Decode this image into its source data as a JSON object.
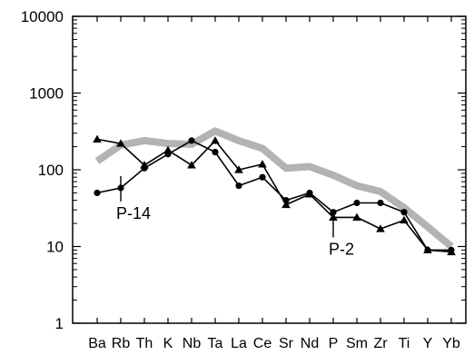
{
  "chart_data": {
    "type": "line",
    "title": "",
    "xlabel": "",
    "ylabel": "",
    "y_scale": "log",
    "ylim": [
      1,
      10000
    ],
    "y_ticks": [
      {
        "value": 1,
        "label": "1"
      },
      {
        "value": 10,
        "label": "10"
      },
      {
        "value": 100,
        "label": "100"
      },
      {
        "value": 1000,
        "label": "1000"
      },
      {
        "value": 10000,
        "label": "10000"
      }
    ],
    "categories": [
      "Ba",
      "Rb",
      "Th",
      "K",
      "Nb",
      "Ta",
      "La",
      "Ce",
      "Sr",
      "Nd",
      "P",
      "Sm",
      "Zr",
      "Ti",
      "Y",
      "Yb"
    ],
    "grid": false,
    "legend": "none",
    "series": [
      {
        "marker": "none",
        "color": "#b3b3b3",
        "values": [
          130,
          210,
          240,
          220,
          215,
          320,
          240,
          190,
          105,
          110,
          85,
          62,
          52,
          32,
          18,
          10
        ]
      },
      {
        "marker": "circle",
        "color": "#000000",
        "values": [
          50,
          58,
          105,
          160,
          240,
          170,
          62,
          80,
          40,
          50,
          28,
          37,
          37,
          28,
          9,
          9
        ]
      },
      {
        "marker": "triangle",
        "color": "#000000",
        "values": [
          250,
          220,
          115,
          180,
          115,
          240,
          100,
          118,
          35,
          48,
          24,
          24,
          17,
          22,
          9,
          8.5
        ]
      }
    ],
    "annotations": [
      {
        "text": "P-14",
        "category": "Rb",
        "value": 25
      },
      {
        "text": "P-2",
        "category": "P",
        "value": 8.5
      }
    ]
  }
}
